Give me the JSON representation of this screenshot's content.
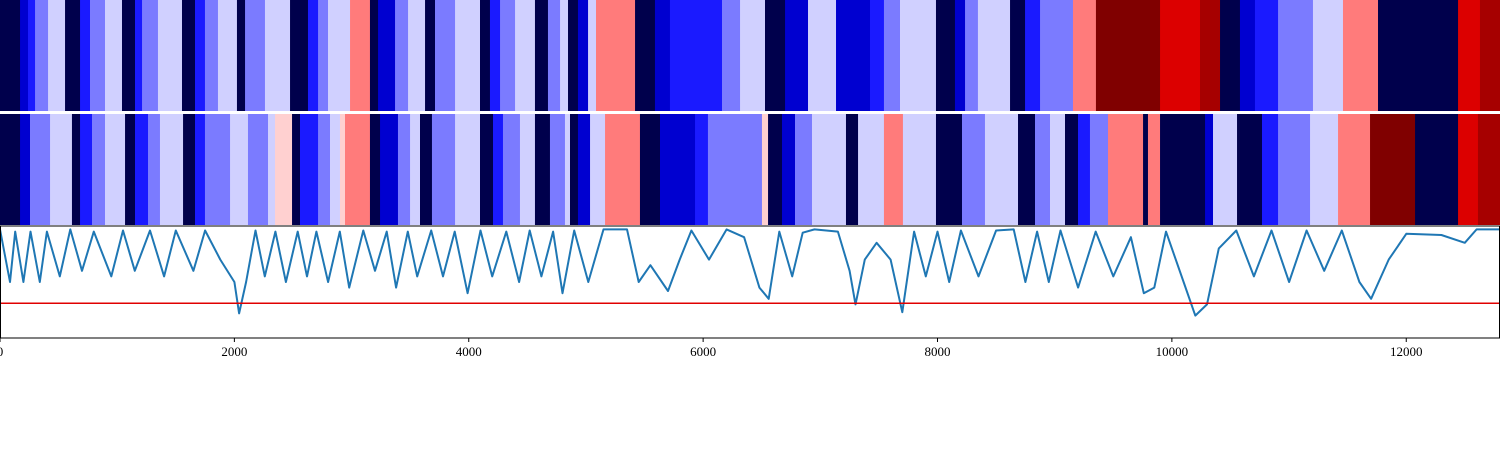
{
  "chart_data": [
    {
      "type": "strip",
      "xlim": [
        0,
        12800
      ],
      "edges": [
        0,
        171,
        239,
        299,
        410,
        555,
        683,
        768,
        896,
        1041,
        1152,
        1212,
        1348,
        1553,
        1664,
        1749,
        1860,
        2022,
        2091,
        2261,
        2475,
        2628,
        2714,
        2799,
        2987,
        3157,
        3226,
        3371,
        3482,
        3627,
        3712,
        3883,
        4096,
        4181,
        4267,
        4395,
        4565,
        4676,
        4779,
        4847,
        4932,
        5018,
        5086,
        5419,
        5589,
        5717,
        6161,
        6315,
        6528,
        6699,
        6895,
        7134,
        7424,
        7543,
        7680,
        7987,
        8149,
        8235,
        8345,
        8619,
        8747,
        8875,
        9156,
        9352,
        9899,
        10240,
        10411,
        10581,
        10709,
        10906,
        11204,
        11460,
        11759,
        12442,
        12629,
        12800
      ],
      "colors": [
        "#00004c",
        "#0000d0",
        "#1a1aff",
        "#7b7bff",
        "#d0d0ff",
        "#00004c",
        "#1a1aff",
        "#7b7bff",
        "#d0d0ff",
        "#00004c",
        "#1a1aff",
        "#7b7bff",
        "#d0d0ff",
        "#00004c",
        "#1a1aff",
        "#7b7bff",
        "#d0d0ff",
        "#00004c",
        "#7b7bff",
        "#d0d0ff",
        "#00004c",
        "#1a1aff",
        "#7b7bff",
        "#d0d0ff",
        "#ff7b7b",
        "#00004c",
        "#0000d0",
        "#7b7bff",
        "#d0d0ff",
        "#00004c",
        "#7b7bff",
        "#d0d0ff",
        "#00004c",
        "#1a1aff",
        "#7b7bff",
        "#d0d0ff",
        "#00004c",
        "#7b7bff",
        "#d0d0ff",
        "#00004c",
        "#0000d0",
        "#d0d0ff",
        "#ff7b7b",
        "#00004c",
        "#0000d0",
        "#1a1aff",
        "#7b7bff",
        "#d0d0ff",
        "#00004c",
        "#0000d0",
        "#d0d0ff",
        "#0000d0",
        "#1a1aff",
        "#7b7bff",
        "#d0d0ff",
        "#00004c",
        "#0000d0",
        "#7b7bff",
        "#d0d0ff",
        "#00004c",
        "#1a1aff",
        "#7b7bff",
        "#ff7b7b",
        "#800000",
        "#dc0000",
        "#a60000",
        "#00004c",
        "#0000d0",
        "#1a1aff",
        "#7b7bff",
        "#d0d0ff",
        "#ff7b7b",
        "#00004c",
        "#dc0000",
        "#a60000"
      ]
    },
    {
      "type": "strip",
      "xlim": [
        0,
        12800
      ],
      "edges": [
        0,
        171,
        256,
        427,
        614,
        683,
        785,
        896,
        1067,
        1152,
        1263,
        1365,
        1562,
        1664,
        1749,
        1963,
        2116,
        2287,
        2347,
        2492,
        2560,
        2714,
        2816,
        2901,
        2944,
        3157,
        3243,
        3396,
        3499,
        3584,
        3686,
        3883,
        4096,
        4207,
        4292,
        4437,
        4565,
        4693,
        4821,
        4864,
        4932,
        5035,
        5163,
        5461,
        5632,
        5931,
        6041,
        6502,
        6554,
        6673,
        6784,
        6929,
        7219,
        7322,
        7543,
        7705,
        7987,
        8209,
        8405,
        8687,
        8832,
        8960,
        9088,
        9199,
        9301,
        9455,
        9754,
        9796,
        9899,
        10283,
        10351,
        10556,
        10769,
        10906,
        11179,
        11418,
        11691,
        12075,
        12442,
        12612,
        12800
      ],
      "colors": [
        "#00004c",
        "#0000d0",
        "#7b7bff",
        "#d0d0ff",
        "#00004c",
        "#1a1aff",
        "#7b7bff",
        "#d0d0ff",
        "#00004c",
        "#1a1aff",
        "#7b7bff",
        "#d0d0ff",
        "#00004c",
        "#1a1aff",
        "#7b7bff",
        "#d0d0ff",
        "#7b7bff",
        "#d0d0ff",
        "#ffd0d0",
        "#00004c",
        "#1a1aff",
        "#7b7bff",
        "#d0d0ff",
        "#ffd0d0",
        "#ff7b7b",
        "#00004c",
        "#0000d0",
        "#7b7bff",
        "#d0d0ff",
        "#00004c",
        "#7b7bff",
        "#d0d0ff",
        "#00004c",
        "#1a1aff",
        "#7b7bff",
        "#d0d0ff",
        "#00004c",
        "#7b7bff",
        "#d0d0ff",
        "#00004c",
        "#0000d0",
        "#d0d0ff",
        "#ff7b7b",
        "#00004c",
        "#0000d0",
        "#1a1aff",
        "#7b7bff",
        "#ffd0d0",
        "#00004c",
        "#0000d0",
        "#7b7bff",
        "#d0d0ff",
        "#00004c",
        "#d0d0ff",
        "#ff7b7b",
        "#d0d0ff",
        "#00004c",
        "#7b7bff",
        "#d0d0ff",
        "#00004c",
        "#7b7bff",
        "#d0d0ff",
        "#00004c",
        "#1a1aff",
        "#7b7bff",
        "#ff7b7b",
        "#00004c",
        "#ff7b7b",
        "#00004c",
        "#0000d0",
        "#d0d0ff",
        "#00004c",
        "#1a1aff",
        "#7b7bff",
        "#d0d0ff",
        "#ff7b7b",
        "#800000",
        "#00004c",
        "#dc0000",
        "#a60000"
      ]
    },
    {
      "type": "line",
      "xlim": [
        0,
        12800
      ],
      "ylim": [
        0,
        1
      ],
      "xticks": [
        0,
        2000,
        4000,
        6000,
        8000,
        10000,
        12000
      ],
      "color": "#1f77b4",
      "hline": 0.31,
      "hline_color": "#e00000",
      "x": [
        0,
        85,
        130,
        200,
        260,
        340,
        400,
        510,
        600,
        700,
        800,
        950,
        1050,
        1150,
        1280,
        1400,
        1500,
        1650,
        1750,
        1880,
        2000,
        2040,
        2100,
        2180,
        2260,
        2350,
        2440,
        2540,
        2620,
        2700,
        2800,
        2900,
        2980,
        3100,
        3200,
        3300,
        3380,
        3480,
        3560,
        3680,
        3780,
        3880,
        3990,
        4100,
        4200,
        4320,
        4430,
        4520,
        4620,
        4720,
        4800,
        4900,
        5020,
        5150,
        5350,
        5450,
        5550,
        5700,
        5800,
        5900,
        6050,
        6200,
        6350,
        6480,
        6560,
        6650,
        6760,
        6850,
        6950,
        7150,
        7250,
        7300,
        7380,
        7480,
        7600,
        7700,
        7800,
        7900,
        8000,
        8100,
        8200,
        8350,
        8500,
        8650,
        8750,
        8850,
        8950,
        9050,
        9200,
        9350,
        9500,
        9650,
        9760,
        9850,
        9950,
        10100,
        10200,
        10300,
        10400,
        10550,
        10700,
        10850,
        11000,
        11150,
        11300,
        11450,
        11600,
        11700,
        11850,
        12000,
        12300,
        12500,
        12600,
        12800
      ],
      "values": [
        0.97,
        0.5,
        0.95,
        0.5,
        0.95,
        0.5,
        0.95,
        0.55,
        0.97,
        0.6,
        0.95,
        0.55,
        0.96,
        0.6,
        0.96,
        0.55,
        0.96,
        0.6,
        0.96,
        0.7,
        0.5,
        0.22,
        0.5,
        0.96,
        0.55,
        0.95,
        0.5,
        0.95,
        0.55,
        0.95,
        0.5,
        0.95,
        0.45,
        0.96,
        0.6,
        0.95,
        0.45,
        0.95,
        0.55,
        0.96,
        0.55,
        0.95,
        0.4,
        0.96,
        0.55,
        0.95,
        0.5,
        0.96,
        0.55,
        0.95,
        0.4,
        0.96,
        0.5,
        0.97,
        0.97,
        0.5,
        0.65,
        0.42,
        0.7,
        0.96,
        0.7,
        0.97,
        0.9,
        0.45,
        0.35,
        0.95,
        0.55,
        0.94,
        0.97,
        0.95,
        0.6,
        0.3,
        0.7,
        0.85,
        0.7,
        0.23,
        0.95,
        0.55,
        0.95,
        0.5,
        0.96,
        0.55,
        0.96,
        0.97,
        0.5,
        0.95,
        0.5,
        0.96,
        0.45,
        0.95,
        0.55,
        0.9,
        0.4,
        0.45,
        0.95,
        0.5,
        0.2,
        0.3,
        0.8,
        0.96,
        0.55,
        0.96,
        0.5,
        0.96,
        0.6,
        0.96,
        0.5,
        0.35,
        0.7,
        0.93,
        0.92,
        0.85,
        0.97,
        0.97
      ]
    }
  ]
}
